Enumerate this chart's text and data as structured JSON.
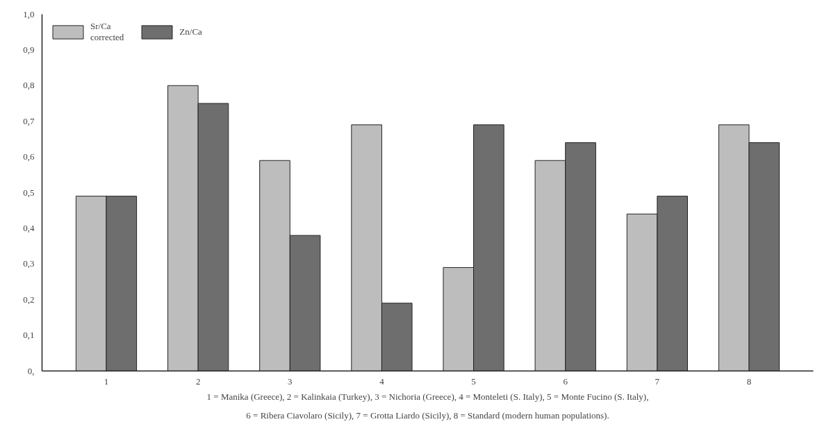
{
  "chart_data": {
    "type": "bar",
    "categories": [
      "1",
      "2",
      "3",
      "4",
      "5",
      "6",
      "7",
      "8"
    ],
    "series": [
      {
        "name": "Sr/Ca\ncorrected",
        "color": "#bdbdbd",
        "values": [
          0.49,
          0.8,
          0.59,
          0.69,
          0.29,
          0.59,
          0.44,
          0.69
        ]
      },
      {
        "name": "Zn/Ca",
        "color": "#6e6e6e",
        "values": [
          0.49,
          0.75,
          0.38,
          0.19,
          0.69,
          0.64,
          0.49,
          0.64
        ]
      }
    ],
    "ylim": [
      0,
      1.0
    ],
    "yticks": [
      {
        "value": 0,
        "label": "0,"
      },
      {
        "value": 0.1,
        "label": "0,1"
      },
      {
        "value": 0.2,
        "label": "0,2"
      },
      {
        "value": 0.3,
        "label": "0,3"
      },
      {
        "value": 0.4,
        "label": "0,4"
      },
      {
        "value": 0.5,
        "label": "0,5"
      },
      {
        "value": 0.6,
        "label": "0,6"
      },
      {
        "value": 0.7,
        "label": "0,7"
      },
      {
        "value": 0.8,
        "label": "0,8"
      },
      {
        "value": 0.9,
        "label": "0,9"
      },
      {
        "value": 1.0,
        "label": "1,0"
      }
    ],
    "grid": false,
    "legend": "top left",
    "annotations": [
      "1 = Manika (Greece), 2 = Kalinkaia (Turkey), 3 = Nichoria (Greece), 4 = Monteleti (S. Italy), 5 = Monte Fucino (S. Italy),",
      "6 = Ribera Ciavolaro (Sicily), 7 = Grotta Liardo (Sicily), 8 = Standard (modern human populations)."
    ]
  }
}
